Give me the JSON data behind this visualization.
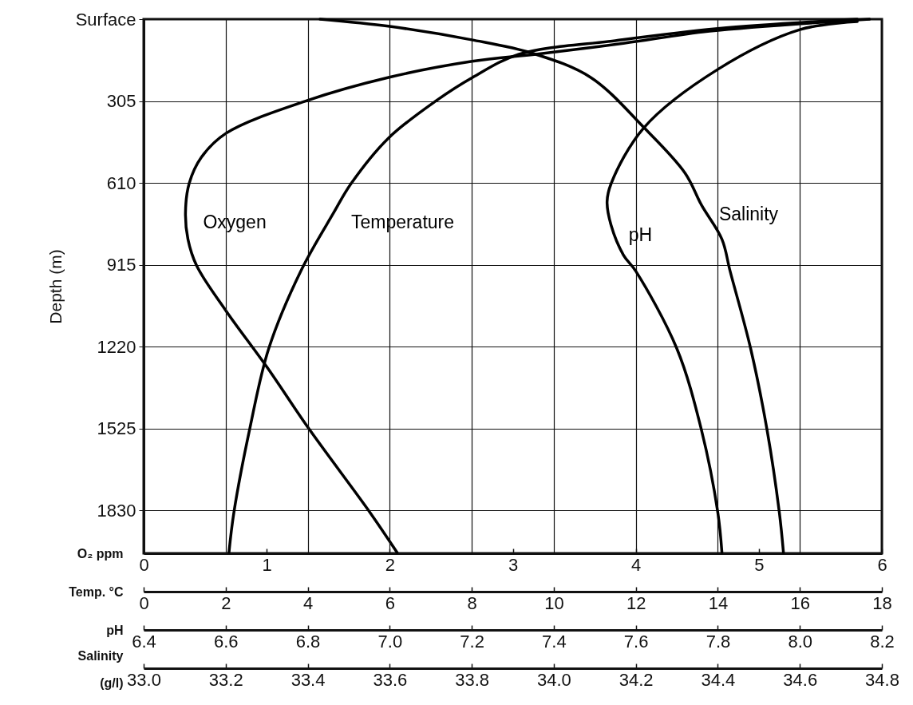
{
  "chart_data": [
    {
      "type": "line",
      "ylabel": "Depth (m)",
      "ylim": [
        1990,
        0
      ],
      "yticks": [
        {
          "value": 0,
          "label": "Surface"
        },
        305,
        610,
        915,
        1220,
        1525,
        1830
      ],
      "xlabel": "O₂ ppm",
      "xlim": [
        0,
        6
      ],
      "xticks": [
        0,
        1,
        2,
        3,
        4,
        5,
        6
      ],
      "grid": "y",
      "series": [
        {
          "name": "Oxygen",
          "color": "#000000",
          "x": [
            5.9,
            4.6,
            3.9,
            3.2,
            2.67,
            1.99,
            1.33,
            0.67,
            0.47,
            0.37,
            0.34,
            0.36,
            0.43,
            0.67,
            1.0,
            1.34,
            1.84,
            2.06
          ],
          "values": [
            0,
            45,
            90,
            130,
            157,
            217,
            303,
            425,
            514,
            612,
            722,
            820,
            918,
            1087,
            1295,
            1524,
            1838,
            1987
          ]
        }
      ]
    },
    {
      "type": "line",
      "ylim": [
        1990,
        0
      ],
      "xlabel": "Temp. °C",
      "xlim": [
        0,
        18
      ],
      "xticks": [
        0,
        2,
        4,
        6,
        8,
        10,
        12,
        14,
        16,
        18
      ],
      "grid": "x",
      "tick_labels": "x",
      "series": [
        {
          "name": "Temperature",
          "color": "#000000",
          "x": [
            17.4,
            14.0,
            11.5,
            9.15,
            8.02,
            7.14,
            5.97,
            5.06,
            4.63,
            3.83,
            3.05,
            2.59,
            2.2,
            2.08
          ],
          "values": [
            0,
            35,
            80,
            131,
            217,
            303,
            443,
            612,
            722,
            939,
            1227,
            1524,
            1838,
            1987
          ]
        }
      ]
    },
    {
      "type": "line",
      "ylim": [
        1990,
        0
      ],
      "xlabel": "pH",
      "xlim": [
        6.4,
        8.2
      ],
      "xticks": [
        6.4,
        6.6,
        6.8,
        {
          "value": 7,
          "label": "7.0"
        },
        7.2,
        7.4,
        7.6,
        7.8,
        {
          "value": 8,
          "label": "8.0"
        },
        8.2
      ],
      "tick_labels": "x",
      "series": [
        {
          "name": "pH",
          "color": "#000000",
          "x": [
            8.14,
            8.0,
            7.8,
            7.62,
            7.54,
            7.53,
            7.54,
            7.57,
            7.6,
            7.7,
            7.76,
            7.8,
            7.81
          ],
          "values": [
            9,
            39,
            187,
            404,
            612,
            680,
            769,
            879,
            939,
            1227,
            1530,
            1838,
            1987
          ]
        }
      ]
    },
    {
      "type": "line",
      "ylim": [
        1990,
        0
      ],
      "xlabel": "Salinity (g/l)",
      "xlim": [
        33,
        34.8
      ],
      "xticks": [
        {
          "value": 33,
          "label": "33.0"
        },
        33.2,
        33.4,
        33.6,
        33.8,
        {
          "value": 34,
          "label": "34.0"
        },
        34.2,
        34.4,
        34.6,
        34.8
      ],
      "tick_labels": "x",
      "series": [
        {
          "name": "Salinity",
          "color": "#000000",
          "x": [
            33.43,
            33.6,
            33.8,
            33.95,
            34.09,
            34.22,
            34.32,
            34.36,
            34.41,
            34.43,
            34.48,
            34.52,
            34.55,
            34.56
          ],
          "values": [
            0,
            27,
            77,
            128,
            217,
            404,
            573,
            692,
            820,
            939,
            1227,
            1530,
            1838,
            1987
          ]
        }
      ]
    }
  ]
}
